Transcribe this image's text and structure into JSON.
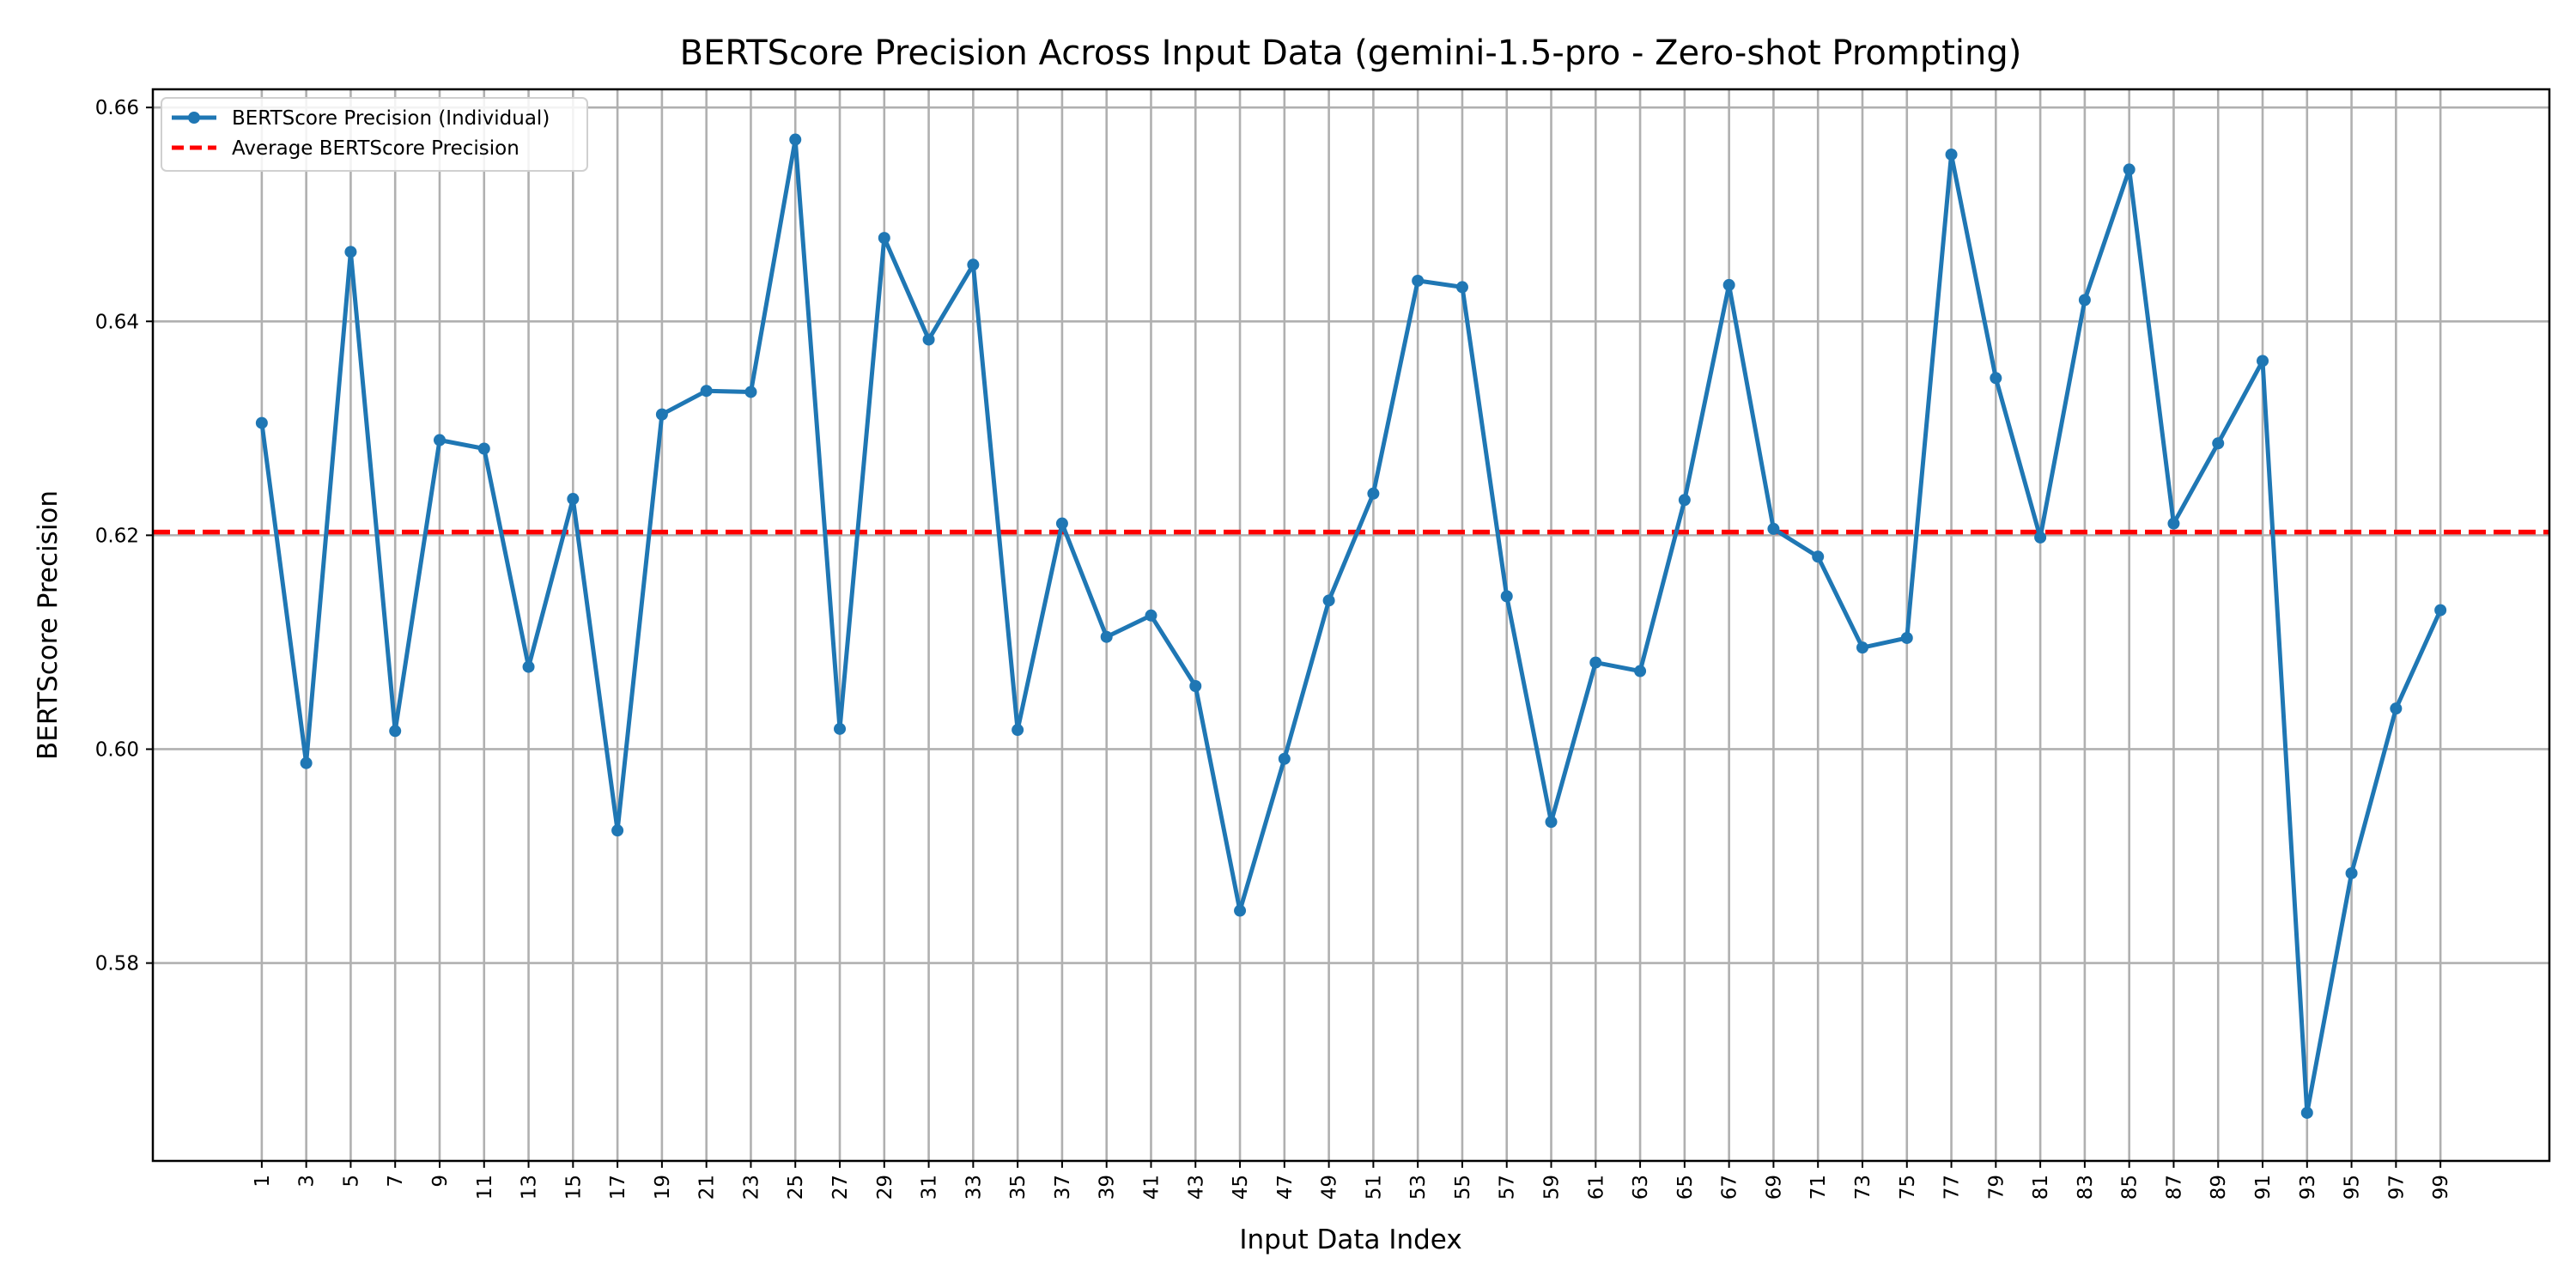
{
  "chart_data": {
    "type": "line",
    "title": "BERTScore Precision Across Input Data (gemini-1.5-pro - Zero-shot Prompting)",
    "xlabel": "Input Data Index",
    "ylabel": "BERTScore Precision",
    "x": [
      1,
      3,
      5,
      7,
      9,
      11,
      13,
      15,
      17,
      19,
      21,
      23,
      25,
      27,
      29,
      31,
      33,
      35,
      37,
      39,
      41,
      43,
      45,
      47,
      49,
      51,
      53,
      55,
      57,
      59,
      61,
      63,
      65,
      67,
      69,
      71,
      73,
      75,
      77,
      79,
      81,
      83,
      85,
      87,
      89,
      91,
      93,
      95,
      97,
      99
    ],
    "x_tick_labels": [
      "1",
      "3",
      "5",
      "7",
      "9",
      "11",
      "13",
      "15",
      "17",
      "19",
      "21",
      "23",
      "25",
      "27",
      "29",
      "31",
      "33",
      "35",
      "37",
      "39",
      "41",
      "43",
      "45",
      "47",
      "49",
      "51",
      "53",
      "55",
      "57",
      "59",
      "61",
      "63",
      "65",
      "67",
      "69",
      "71",
      "73",
      "75",
      "77",
      "79",
      "81",
      "83",
      "85",
      "87",
      "89",
      "91",
      "93",
      "95",
      "97",
      "99"
    ],
    "series": [
      {
        "name": "BERTScore Precision (Individual)",
        "color": "#1f77b4",
        "marker": "circle",
        "values": [
          0.6305,
          0.5987,
          0.6465,
          0.6017,
          0.6289,
          0.6281,
          0.6077,
          0.6234,
          0.5924,
          0.6313,
          0.6335,
          0.6334,
          0.657,
          0.6019,
          0.6478,
          0.6383,
          0.6453,
          0.6018,
          0.6211,
          0.6105,
          0.6125,
          0.6059,
          0.5849,
          0.5991,
          0.6139,
          0.6239,
          0.6438,
          0.6432,
          0.6143,
          0.5932,
          0.6081,
          0.6073,
          0.6233,
          0.6434,
          0.6206,
          0.618,
          0.6095,
          0.6104,
          0.6556,
          0.6347,
          0.6198,
          0.642,
          0.6542,
          0.6211,
          0.6286,
          0.6363,
          0.566,
          0.5884,
          0.6038,
          0.613
        ]
      }
    ],
    "average": {
      "name": "Average BERTScore Precision",
      "value": 0.6203,
      "color": "#ff0000",
      "style": "dashed"
    },
    "y_ticks": [
      0.58,
      0.6,
      0.62,
      0.64,
      0.66
    ],
    "y_tick_labels": [
      "0.58",
      "0.60",
      "0.62",
      "0.64",
      "0.66"
    ],
    "ylim": [
      0.5615,
      0.6617
    ],
    "xlim": [
      -3.9,
      103.9
    ],
    "grid": true,
    "legend_position": "top-left"
  }
}
